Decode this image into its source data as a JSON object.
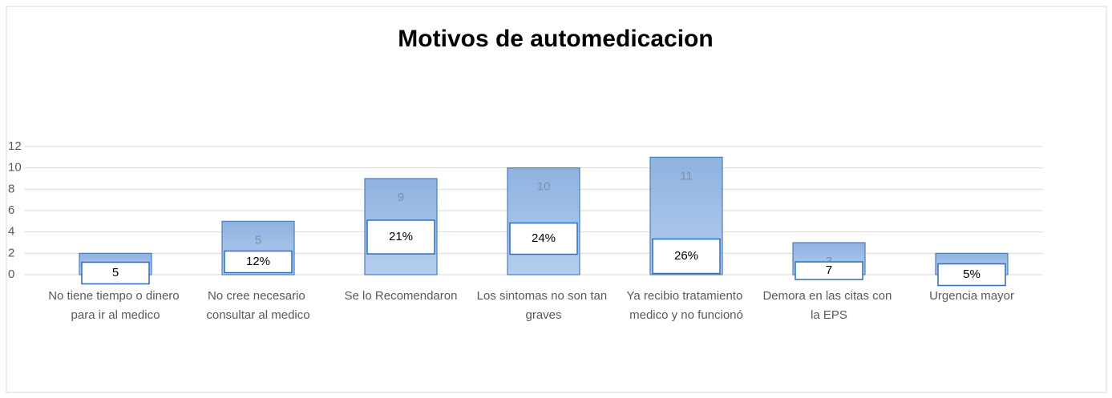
{
  "chart_data": {
    "type": "bar",
    "title": "Motivos de automedicacion",
    "categories": [
      "No tiene tiempo o dinero para ir al medico",
      "No cree necesario consultar al medico",
      "Se lo Recomendaron",
      "Los sintomas no son tan graves",
      "Ya recibio tratamiento medico y no funcionó",
      "Demora en las citas con la EPS",
      "Urgencia mayor"
    ],
    "values": [
      2,
      5,
      9,
      10,
      11,
      3,
      2
    ],
    "annotations": [
      "5",
      "12%",
      "21%",
      "24%",
      "26%",
      "7",
      "5%"
    ],
    "color": "#9dbde6",
    "ylim": [
      0,
      12
    ],
    "yticks": [
      0,
      2,
      4,
      6,
      8,
      10,
      12
    ],
    "grid": true
  }
}
